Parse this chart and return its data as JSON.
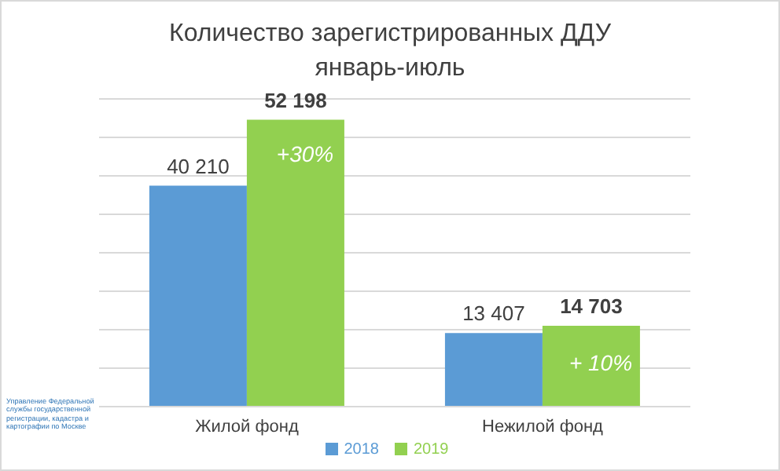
{
  "chart_data": {
    "type": "bar",
    "title": "Количество зарегистрированных ДДУ",
    "subtitle": "январь-июль",
    "categories": [
      "Жилой фонд",
      "Нежилой фонд"
    ],
    "series": [
      {
        "name": "2018",
        "color": "#5b9bd5",
        "values": [
          40210,
          13407
        ],
        "value_labels": [
          "40 210",
          "13 407"
        ]
      },
      {
        "name": "2019",
        "color": "#92d050",
        "values": [
          52198,
          14703
        ],
        "value_labels": [
          "52 198",
          "14 703"
        ]
      }
    ],
    "tick_labels": "x",
    "grid": "y",
    "legend": "bottom",
    "annotations": [
      {
        "text": "+30%",
        "x": "Жилой фонд",
        "y": 46000
      },
      {
        "text": "+ 10%",
        "x": "Нежилой фонд",
        "y": 8000
      },
      "Управление Федеральной службы государственной регистрации, кадастра и картографии по Москве"
    ]
  }
}
